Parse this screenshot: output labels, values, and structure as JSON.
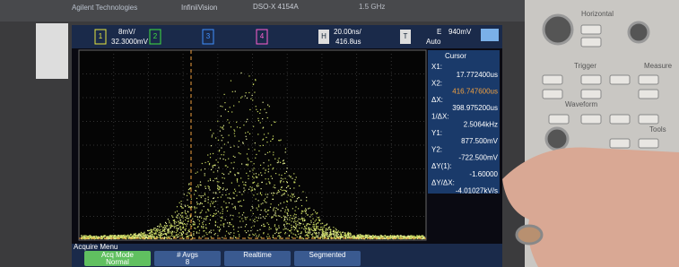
{
  "header": {
    "brand": "Agilent Technologies",
    "product": "InfiniiVision",
    "model": "DSO-X 4154A",
    "spec": "1.5 GHz"
  },
  "status_bar": {
    "ch1_num": "1",
    "ch1_scale": "8mV/",
    "ch1_offset": "32.3000mV",
    "ch2": "2",
    "ch3": "3",
    "ch4": "4",
    "h_label": "H",
    "time_scale": "20.00ns/",
    "delay": "416.8us",
    "t_label": "T",
    "trigger_edge": "E",
    "trigger_level": "940mV",
    "trigger_mode": "Auto"
  },
  "cursor_panel": {
    "title": "Cursor",
    "readouts": [
      {
        "label": "X1:",
        "value": "17.772400us"
      },
      {
        "label": "X2:",
        "value": "416.747600us"
      },
      {
        "label": "ΔX:",
        "value": "398.975200us"
      },
      {
        "label": "1/ΔX:",
        "value": "2.5064kHz"
      },
      {
        "label": "Y1:",
        "value": "877.500mV"
      },
      {
        "label": "Y2:",
        "value": "-722.500mV"
      },
      {
        "label": "ΔY(1):",
        "value": "-1.60000"
      },
      {
        "label": "ΔY/ΔX:",
        "value": "-4.01027kV/s"
      }
    ]
  },
  "softkeys": {
    "menu": "Acquire Menu",
    "items": [
      {
        "label": "Acq Mode",
        "value": "Normal"
      },
      {
        "label": "# Avgs",
        "value": "8"
      },
      {
        "label": "Realtime"
      },
      {
        "label": "Segmented"
      }
    ]
  },
  "front_panel": {
    "labels": [
      "Horizontal",
      "Trigger",
      "Measure",
      "Waveform",
      "Tools"
    ]
  }
}
